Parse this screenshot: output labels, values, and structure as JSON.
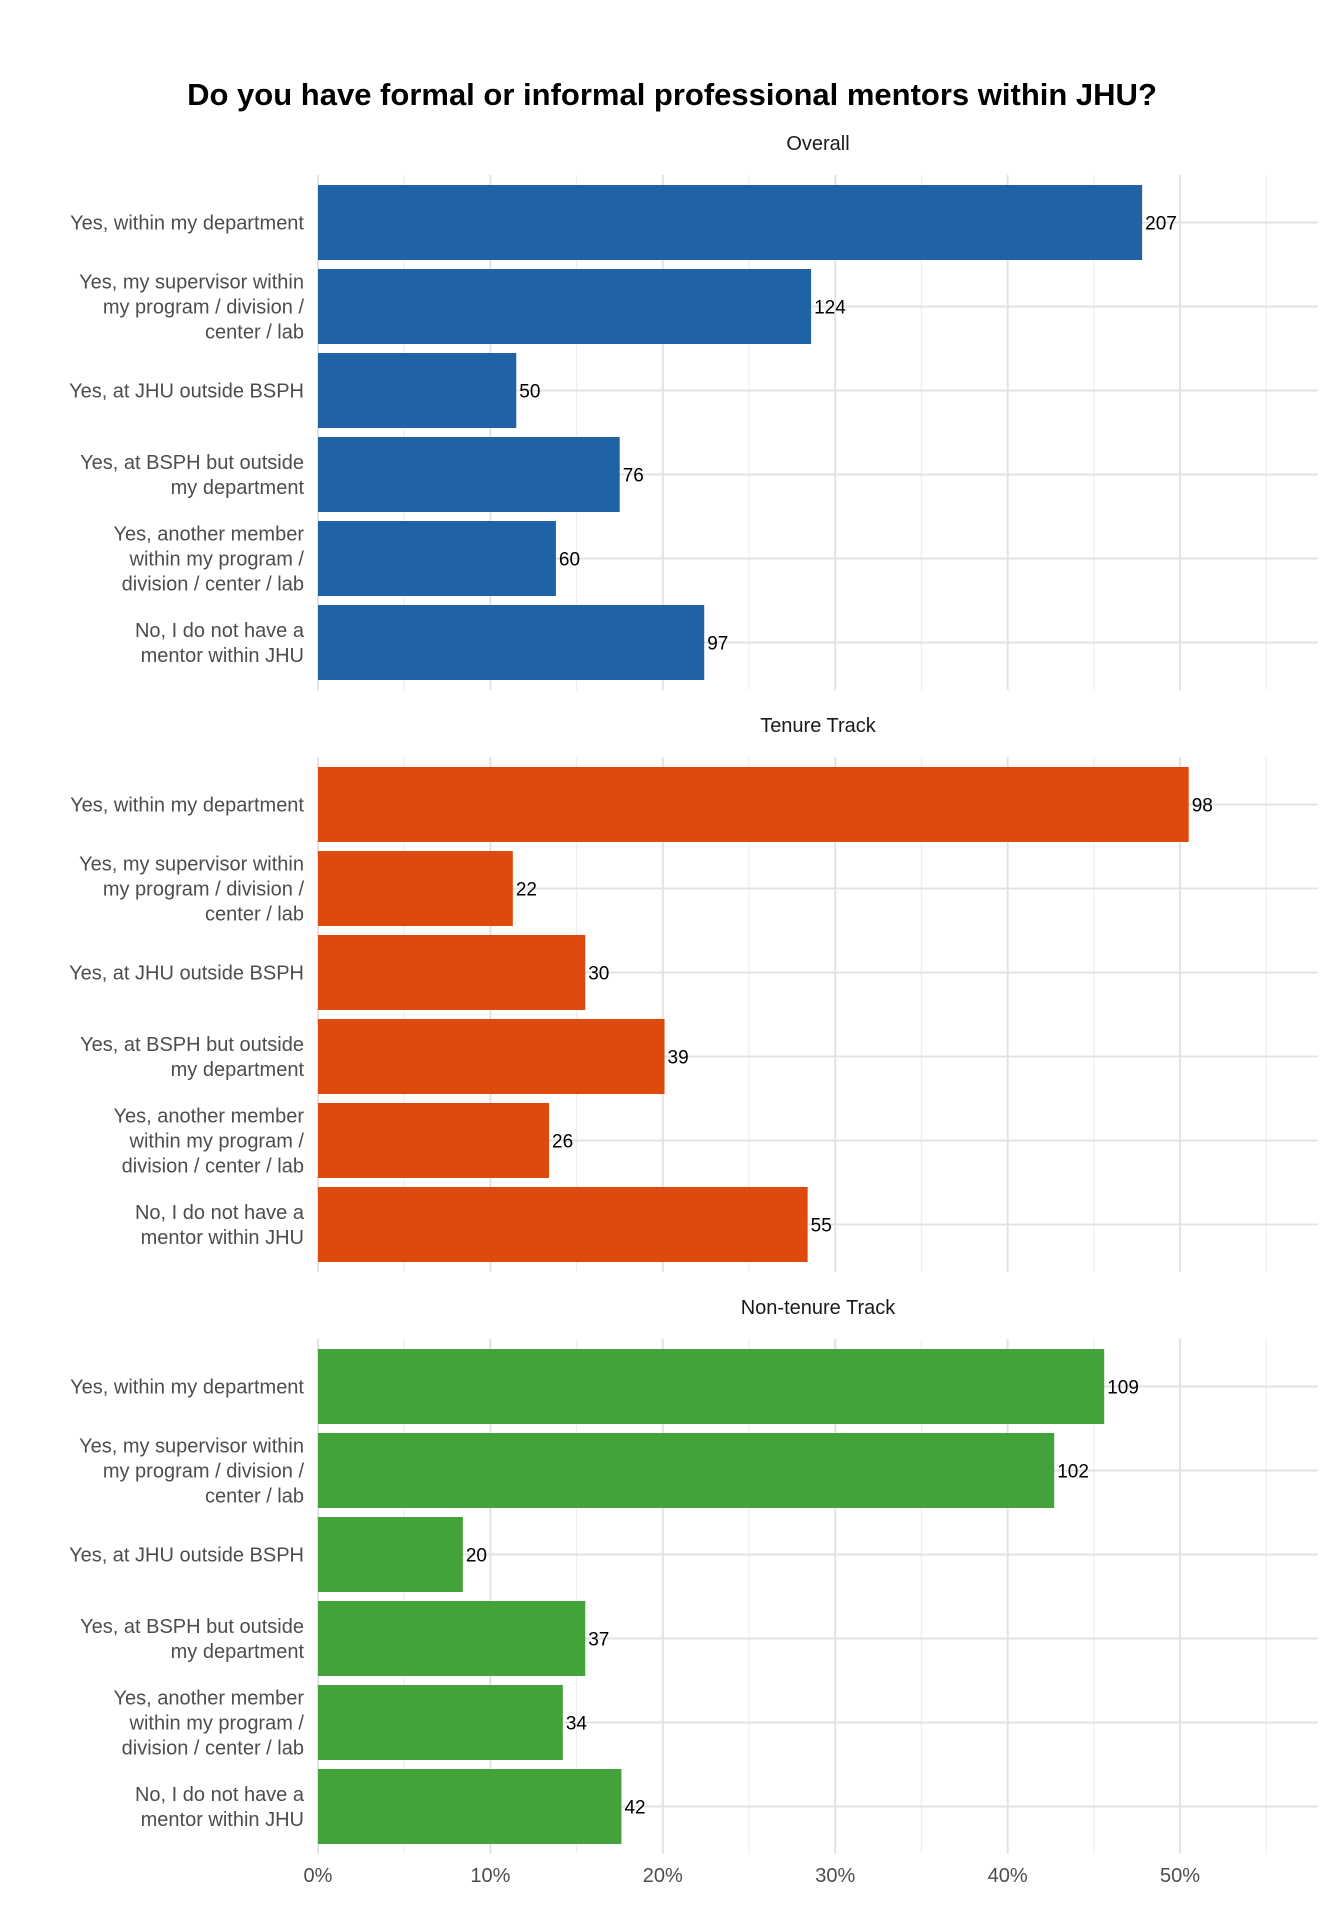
{
  "chart_data": {
    "type": "bar",
    "orientation": "horizontal",
    "title": "Do you have formal or informal professional mentors within JHU?",
    "xlabel": "",
    "ylabel": "",
    "value_unit": "percent of respondents (bar length); labels show counts",
    "xlim": [
      0,
      58
    ],
    "x_ticks": [
      "0%",
      "10%",
      "20%",
      "30%",
      "40%",
      "50%"
    ],
    "grid": true,
    "legend": "none",
    "categories": [
      "Yes, within my department",
      "Yes, my supervisor within my program / division / center / lab",
      "Yes, at JHU outside BSPH",
      "Yes, at BSPH but outside my department",
      "Yes, another member within my program / division / center / lab",
      "No, I do not have a mentor within JHU"
    ],
    "category_lines": [
      [
        "Yes, within my department"
      ],
      [
        "Yes, my supervisor within",
        "my program / division /",
        "center / lab"
      ],
      [
        "Yes, at JHU outside BSPH"
      ],
      [
        "Yes, at BSPH but outside",
        "my department"
      ],
      [
        "Yes, another member",
        "within my program /",
        "division / center / lab"
      ],
      [
        "No, I do not have a",
        "mentor within JHU"
      ]
    ],
    "panels": [
      {
        "name": "Overall",
        "color": "#1f63a6",
        "percent": [
          47.8,
          28.6,
          11.5,
          17.5,
          13.8,
          22.4
        ],
        "labels": [
          "207",
          "124",
          "50",
          "76",
          "60",
          "97"
        ]
      },
      {
        "name": "Tenure Track",
        "color": "#de4a0b",
        "percent": [
          50.5,
          11.3,
          15.5,
          20.1,
          13.4,
          28.4
        ],
        "labels": [
          "98",
          "22",
          "30",
          "39",
          "26",
          "55"
        ]
      },
      {
        "name": "Non-tenure Track",
        "color": "#42a33b",
        "percent": [
          45.6,
          42.7,
          8.4,
          15.5,
          14.2,
          17.6
        ],
        "labels": [
          "109",
          "102",
          "20",
          "37",
          "34",
          "42"
        ]
      }
    ]
  }
}
